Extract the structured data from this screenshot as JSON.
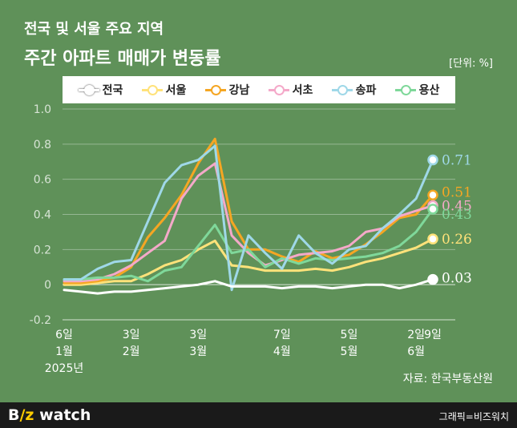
{
  "header": {
    "title_line1": "전국 및 서울 주요 지역",
    "title_line2": "주간 아파트 매매가 변동률",
    "unit": "[단위: %]"
  },
  "source": "자료: 한국부동산원",
  "footer": {
    "logo_text_1": "B",
    "logo_text_2": "/z",
    "logo_text_3": " watch",
    "credit": "그래픽=비즈워치"
  },
  "chart_data": {
    "type": "line",
    "ylim": [
      -0.2,
      1.0
    ],
    "yticks": [
      "1.0",
      "0.8",
      "0.6",
      "0.4",
      "0.2",
      "0",
      "-0.2"
    ],
    "grid": true,
    "legend_position": "top",
    "x_tick_labels": [
      {
        "index": 0,
        "lines": [
          "6일",
          "1월",
          "2025년"
        ]
      },
      {
        "index": 4,
        "lines": [
          "3일",
          "2월"
        ]
      },
      {
        "index": 8,
        "lines": [
          "3일",
          "3월"
        ]
      },
      {
        "index": 13,
        "lines": [
          "7일",
          "4월"
        ]
      },
      {
        "index": 17,
        "lines": [
          "5일",
          "5월"
        ]
      },
      {
        "index": 21,
        "lines": [
          "2일",
          "6월"
        ]
      },
      {
        "index": 22,
        "lines": [
          "9일"
        ]
      }
    ],
    "series": [
      {
        "name": "전국",
        "color": "#ffffff",
        "end_label": "0.03",
        "values": [
          -0.03,
          -0.04,
          -0.05,
          -0.04,
          -0.04,
          -0.03,
          -0.02,
          -0.01,
          0.0,
          0.02,
          -0.01,
          -0.01,
          -0.01,
          -0.02,
          -0.01,
          -0.01,
          -0.02,
          -0.01,
          0.0,
          0.0,
          -0.02,
          0.0,
          0.03
        ]
      },
      {
        "name": "서울",
        "color": "#ffe27a",
        "end_label": "0.26",
        "values": [
          0.0,
          0.0,
          0.01,
          0.02,
          0.02,
          0.06,
          0.11,
          0.14,
          0.2,
          0.25,
          0.11,
          0.1,
          0.08,
          0.08,
          0.08,
          0.09,
          0.08,
          0.1,
          0.13,
          0.15,
          0.18,
          0.21,
          0.26
        ]
      },
      {
        "name": "강남",
        "color": "#f5a623",
        "end_label": "0.51",
        "values": [
          0.01,
          0.01,
          0.02,
          0.04,
          0.1,
          0.27,
          0.38,
          0.51,
          0.69,
          0.83,
          0.36,
          0.2,
          0.2,
          0.16,
          0.13,
          0.19,
          0.15,
          0.17,
          0.23,
          0.3,
          0.38,
          0.4,
          0.51
        ]
      },
      {
        "name": "서초",
        "color": "#f4a9c9",
        "end_label": "0.45",
        "values": [
          0.02,
          0.02,
          0.03,
          0.06,
          0.11,
          0.18,
          0.25,
          0.49,
          0.62,
          0.69,
          0.28,
          0.18,
          0.11,
          0.14,
          0.17,
          0.18,
          0.19,
          0.22,
          0.3,
          0.32,
          0.39,
          0.42,
          0.45
        ]
      },
      {
        "name": "송파",
        "color": "#9fd8e8",
        "end_label": "0.71",
        "values": [
          0.03,
          0.03,
          0.09,
          0.13,
          0.14,
          0.36,
          0.58,
          0.68,
          0.71,
          0.79,
          -0.03,
          0.28,
          0.18,
          0.09,
          0.28,
          0.18,
          0.12,
          0.2,
          0.22,
          0.32,
          0.4,
          0.49,
          0.71
        ]
      },
      {
        "name": "용산",
        "color": "#7fd89a",
        "end_label": "0.43",
        "values": [
          0.03,
          0.03,
          0.04,
          0.04,
          0.05,
          0.02,
          0.08,
          0.1,
          0.22,
          0.34,
          0.18,
          0.2,
          0.1,
          0.15,
          0.12,
          0.15,
          0.14,
          0.15,
          0.16,
          0.18,
          0.22,
          0.3,
          0.43
        ]
      }
    ]
  }
}
